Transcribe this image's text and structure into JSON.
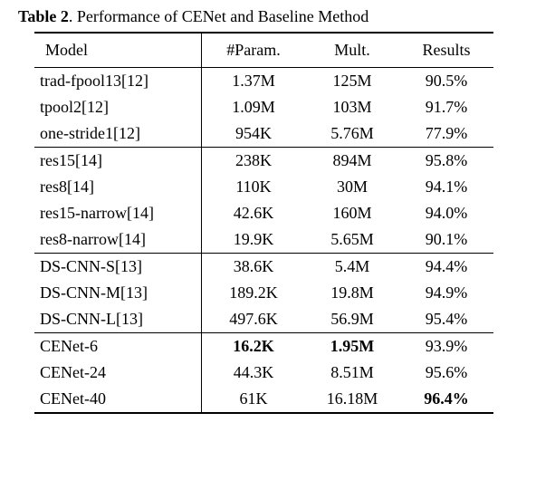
{
  "caption_prefix": "Table 2",
  "caption_rest": ". Performance of CENet and Baseline Method",
  "columns": {
    "model": "Model",
    "param": "#Param.",
    "mult": "Mult.",
    "result": "Results"
  },
  "groups": [
    {
      "rows": [
        {
          "model": "trad-fpool13[12]",
          "param": "1.37M",
          "mult": "125M",
          "result": "90.5%"
        },
        {
          "model": "tpool2[12]",
          "param": "1.09M",
          "mult": "103M",
          "result": "91.7%"
        },
        {
          "model": "one-stride1[12]",
          "param": "954K",
          "mult": "5.76M",
          "result": "77.9%"
        }
      ]
    },
    {
      "rows": [
        {
          "model": "res15[14]",
          "param": "238K",
          "mult": "894M",
          "result": "95.8%"
        },
        {
          "model": "res8[14]",
          "param": "110K",
          "mult": "30M",
          "result": "94.1%"
        },
        {
          "model": "res15-narrow[14]",
          "param": "42.6K",
          "mult": "160M",
          "result": "94.0%"
        },
        {
          "model": "res8-narrow[14]",
          "param": "19.9K",
          "mult": "5.65M",
          "result": "90.1%"
        }
      ]
    },
    {
      "rows": [
        {
          "model": "DS-CNN-S[13]",
          "param": "38.6K",
          "mult": "5.4M",
          "result": "94.4%"
        },
        {
          "model": "DS-CNN-M[13]",
          "param": "189.2K",
          "mult": "19.8M",
          "result": "94.9%"
        },
        {
          "model": "DS-CNN-L[13]",
          "param": "497.6K",
          "mult": "56.9M",
          "result": "95.4%"
        }
      ]
    },
    {
      "rows": [
        {
          "model": "CENet-6",
          "param": "16.2K",
          "mult": "1.95M",
          "result": "93.9%",
          "bold_param": true,
          "bold_mult": true
        },
        {
          "model": "CENet-24",
          "param": "44.3K",
          "mult": "8.51M",
          "result": "95.6%"
        },
        {
          "model": "CENet-40",
          "param": "61K",
          "mult": "16.18M",
          "result": "96.4%",
          "bold_result": true
        }
      ]
    }
  ]
}
